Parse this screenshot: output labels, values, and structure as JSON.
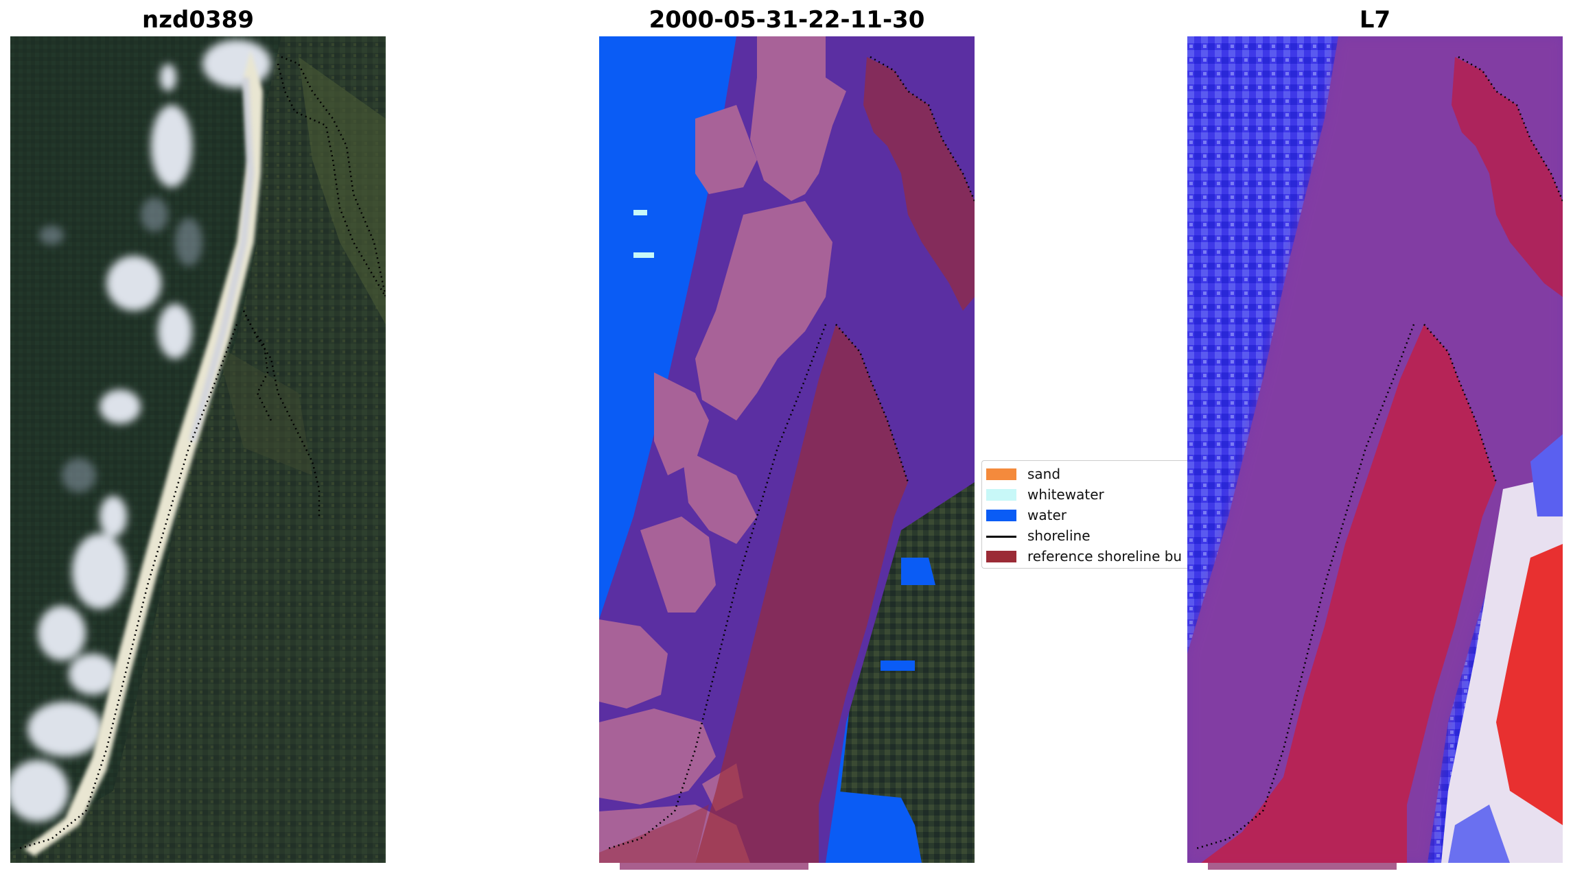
{
  "panels": [
    {
      "title": "nzd0389"
    },
    {
      "title": "2000-05-31-22-11-30"
    },
    {
      "title": "L7"
    }
  ],
  "legend": {
    "items": [
      {
        "label": "sand",
        "color": "#f48a3c"
      },
      {
        "label": "whitewater",
        "color": "#c8f8f8"
      },
      {
        "label": "water",
        "color": "#0a5cf5"
      },
      {
        "label": "shoreline",
        "color": "#000000"
      },
      {
        "label": "reference shoreline bu",
        "color": "#9b2b36"
      }
    ]
  }
}
